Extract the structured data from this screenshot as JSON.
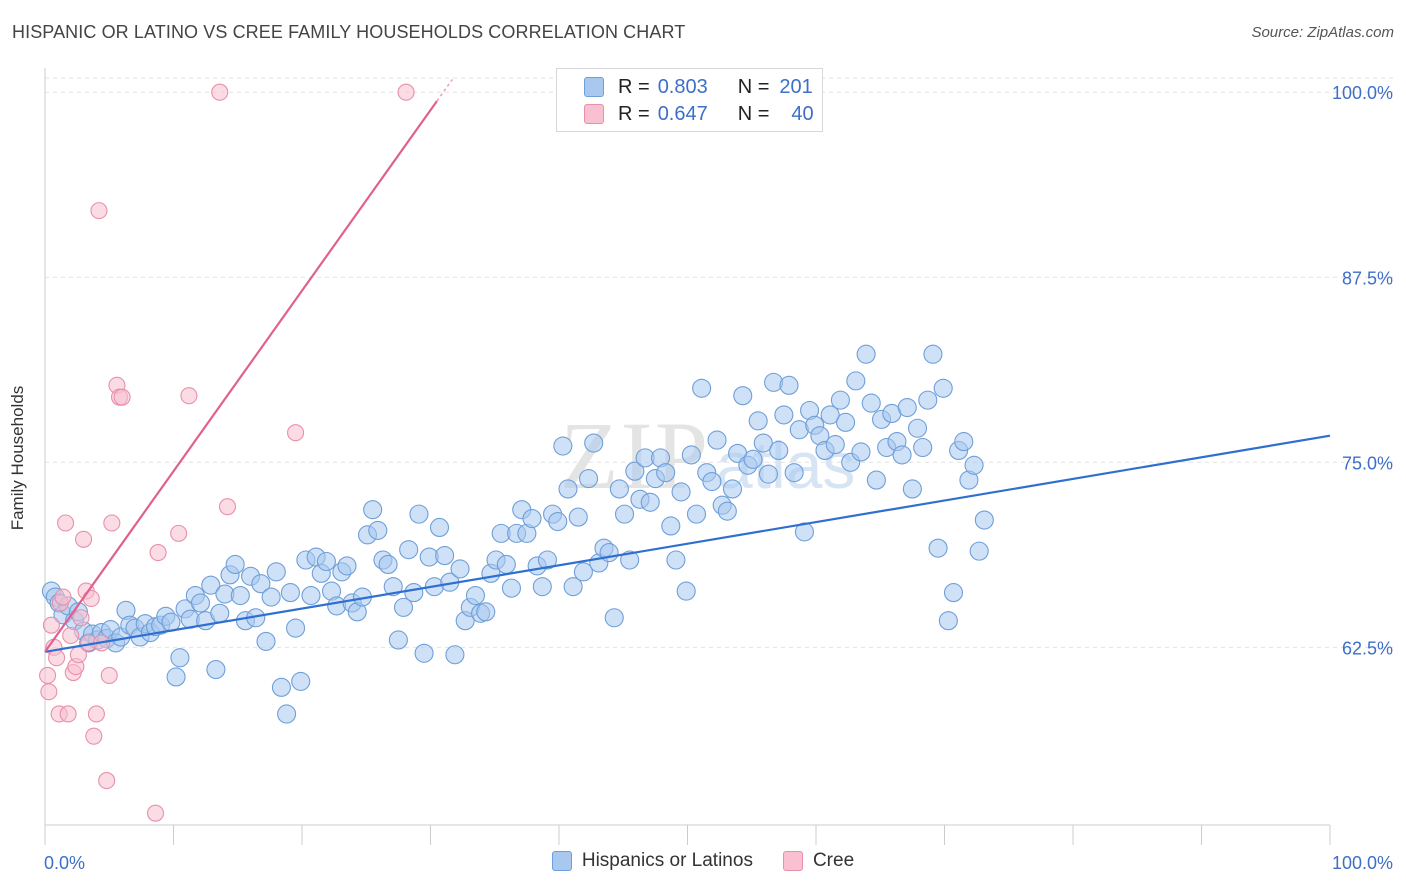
{
  "title": "HISPANIC OR LATINO VS CREE FAMILY HOUSEHOLDS CORRELATION CHART",
  "source": "Source: ZipAtlas.com",
  "watermark": {
    "zip": "ZIP",
    "atlas": "atlas"
  },
  "stats_legend": [
    {
      "r_label": "R =",
      "r_value": "0.803",
      "n_label": "N =",
      "n_value": "201",
      "color": "#a8c8f0",
      "border": "#6f9fd8"
    },
    {
      "r_label": "R =",
      "r_value": "0.647",
      "n_label": "N =",
      "n_value": "40",
      "color": "#f8c0d0",
      "border": "#e890aa"
    }
  ],
  "bottom_legend": [
    {
      "label": "Hispanics or Latinos",
      "color": "#a8c8f0",
      "border": "#6f9fd8"
    },
    {
      "label": "Cree",
      "color": "#f8c0d0",
      "border": "#e890aa"
    }
  ],
  "chart_data": {
    "type": "scatter",
    "title": "HISPANIC OR LATINO VS CREE FAMILY HOUSEHOLDS CORRELATION CHART",
    "xlabel": "",
    "ylabel": "Family Households",
    "xlim": [
      0,
      100
    ],
    "ylim": [
      50.5,
      101.5
    ],
    "x_tick_labels": [
      "0.0%",
      "100.0%"
    ],
    "y_ticks": [
      62.5,
      75.0,
      87.5,
      100.0
    ],
    "y_tick_labels": [
      "62.5%",
      "75.0%",
      "87.5%",
      "100.0%"
    ],
    "grid": true,
    "series": [
      {
        "name": "Hispanics or Latinos",
        "color": "#a8c8f0",
        "stroke": "#6f9fd8",
        "trend": {
          "x": [
            0,
            100
          ],
          "y": [
            62.2,
            76.8
          ],
          "color": "#2f6fd0"
        },
        "points": [
          [
            0.5,
            66.3
          ],
          [
            0.8,
            65.9
          ],
          [
            1.1,
            65.5
          ],
          [
            1.4,
            64.7
          ],
          [
            1.8,
            65.3
          ],
          [
            2.3,
            64.3
          ],
          [
            2.6,
            64.9
          ],
          [
            3.0,
            63.6
          ],
          [
            3.4,
            62.8
          ],
          [
            3.7,
            63.4
          ],
          [
            4.1,
            63.0
          ],
          [
            4.4,
            63.5
          ],
          [
            4.8,
            63.1
          ],
          [
            5.1,
            63.7
          ],
          [
            5.5,
            62.8
          ],
          [
            5.9,
            63.2
          ],
          [
            6.3,
            65.0
          ],
          [
            6.6,
            64.0
          ],
          [
            7.0,
            63.8
          ],
          [
            7.4,
            63.2
          ],
          [
            7.8,
            64.1
          ],
          [
            8.2,
            63.5
          ],
          [
            8.6,
            63.9
          ],
          [
            9.0,
            64.0
          ],
          [
            9.4,
            64.6
          ],
          [
            9.8,
            64.2
          ],
          [
            10.2,
            60.5
          ],
          [
            10.5,
            61.8
          ],
          [
            10.9,
            65.1
          ],
          [
            11.3,
            64.4
          ],
          [
            11.7,
            66.0
          ],
          [
            12.1,
            65.5
          ],
          [
            12.5,
            64.3
          ],
          [
            12.9,
            66.7
          ],
          [
            13.3,
            61.0
          ],
          [
            13.6,
            64.8
          ],
          [
            14.0,
            66.1
          ],
          [
            14.4,
            67.4
          ],
          [
            14.8,
            68.1
          ],
          [
            15.2,
            66.0
          ],
          [
            15.6,
            64.3
          ],
          [
            16.0,
            67.3
          ],
          [
            16.4,
            64.5
          ],
          [
            16.8,
            66.8
          ],
          [
            17.2,
            62.9
          ],
          [
            17.6,
            65.9
          ],
          [
            18.0,
            67.6
          ],
          [
            18.4,
            59.8
          ],
          [
            18.8,
            58.0
          ],
          [
            19.1,
            66.2
          ],
          [
            19.5,
            63.8
          ],
          [
            19.9,
            60.2
          ],
          [
            20.3,
            68.4
          ],
          [
            20.7,
            66.0
          ],
          [
            21.1,
            68.6
          ],
          [
            21.5,
            67.5
          ],
          [
            21.9,
            68.3
          ],
          [
            22.3,
            66.3
          ],
          [
            22.7,
            65.3
          ],
          [
            23.1,
            67.6
          ],
          [
            23.5,
            68.0
          ],
          [
            23.9,
            65.5
          ],
          [
            24.3,
            64.9
          ],
          [
            24.7,
            65.9
          ],
          [
            25.1,
            70.1
          ],
          [
            25.5,
            71.8
          ],
          [
            25.9,
            70.4
          ],
          [
            26.3,
            68.4
          ],
          [
            26.7,
            68.1
          ],
          [
            27.1,
            66.6
          ],
          [
            27.5,
            63.0
          ],
          [
            27.9,
            65.2
          ],
          [
            28.3,
            69.1
          ],
          [
            28.7,
            66.2
          ],
          [
            29.1,
            71.5
          ],
          [
            29.5,
            62.1
          ],
          [
            29.9,
            68.6
          ],
          [
            30.3,
            66.6
          ],
          [
            30.7,
            70.6
          ],
          [
            31.1,
            68.7
          ],
          [
            31.5,
            66.9
          ],
          [
            31.9,
            62.0
          ],
          [
            32.3,
            67.8
          ],
          [
            32.7,
            64.3
          ],
          [
            33.1,
            65.2
          ],
          [
            33.5,
            66.0
          ],
          [
            33.9,
            64.8
          ],
          [
            34.3,
            64.9
          ],
          [
            34.7,
            67.5
          ],
          [
            35.1,
            68.4
          ],
          [
            35.5,
            70.2
          ],
          [
            35.9,
            68.1
          ],
          [
            36.3,
            66.5
          ],
          [
            36.7,
            70.2
          ],
          [
            37.1,
            71.8
          ],
          [
            37.5,
            70.2
          ],
          [
            37.9,
            71.2
          ],
          [
            38.3,
            68.0
          ],
          [
            38.7,
            66.6
          ],
          [
            39.1,
            68.4
          ],
          [
            39.5,
            71.5
          ],
          [
            39.9,
            71.0
          ],
          [
            40.3,
            76.1
          ],
          [
            40.7,
            73.2
          ],
          [
            41.1,
            66.6
          ],
          [
            41.5,
            71.3
          ],
          [
            41.9,
            67.6
          ],
          [
            42.3,
            73.9
          ],
          [
            42.7,
            76.3
          ],
          [
            43.1,
            68.2
          ],
          [
            43.5,
            69.2
          ],
          [
            43.9,
            68.9
          ],
          [
            44.3,
            64.5
          ],
          [
            44.7,
            73.2
          ],
          [
            45.1,
            71.5
          ],
          [
            45.5,
            68.4
          ],
          [
            45.9,
            74.4
          ],
          [
            46.3,
            72.5
          ],
          [
            46.7,
            75.3
          ],
          [
            47.1,
            72.3
          ],
          [
            47.5,
            73.9
          ],
          [
            47.9,
            75.3
          ],
          [
            48.3,
            74.3
          ],
          [
            48.7,
            70.7
          ],
          [
            49.1,
            68.4
          ],
          [
            49.5,
            73.0
          ],
          [
            49.9,
            66.3
          ],
          [
            50.3,
            75.5
          ],
          [
            50.7,
            71.5
          ],
          [
            51.1,
            80.0
          ],
          [
            51.5,
            74.3
          ],
          [
            51.9,
            73.7
          ],
          [
            52.3,
            76.5
          ],
          [
            52.7,
            72.1
          ],
          [
            53.1,
            71.7
          ],
          [
            53.5,
            73.2
          ],
          [
            53.9,
            75.6
          ],
          [
            54.3,
            79.5
          ],
          [
            54.7,
            74.8
          ],
          [
            55.1,
            75.2
          ],
          [
            55.5,
            77.8
          ],
          [
            55.9,
            76.3
          ],
          [
            56.3,
            74.2
          ],
          [
            56.7,
            80.4
          ],
          [
            57.1,
            75.8
          ],
          [
            57.5,
            78.2
          ],
          [
            57.9,
            80.2
          ],
          [
            58.3,
            74.3
          ],
          [
            58.7,
            77.2
          ],
          [
            59.1,
            70.3
          ],
          [
            59.5,
            78.5
          ],
          [
            59.9,
            77.5
          ],
          [
            60.3,
            76.8
          ],
          [
            60.7,
            75.8
          ],
          [
            61.1,
            78.2
          ],
          [
            61.5,
            76.2
          ],
          [
            61.9,
            79.2
          ],
          [
            62.3,
            77.7
          ],
          [
            62.7,
            75.0
          ],
          [
            63.1,
            80.5
          ],
          [
            63.5,
            75.7
          ],
          [
            63.9,
            82.3
          ],
          [
            64.3,
            79.0
          ],
          [
            64.7,
            73.8
          ],
          [
            65.1,
            77.9
          ],
          [
            65.5,
            76.0
          ],
          [
            65.9,
            78.3
          ],
          [
            66.3,
            76.4
          ],
          [
            66.7,
            75.5
          ],
          [
            67.1,
            78.7
          ],
          [
            67.5,
            73.2
          ],
          [
            67.9,
            77.3
          ],
          [
            68.3,
            76.0
          ],
          [
            68.7,
            79.2
          ],
          [
            69.1,
            82.3
          ],
          [
            69.5,
            69.2
          ],
          [
            69.9,
            80.0
          ],
          [
            70.3,
            64.3
          ],
          [
            70.7,
            66.2
          ],
          [
            71.1,
            75.8
          ],
          [
            71.5,
            76.4
          ],
          [
            71.9,
            73.8
          ],
          [
            72.3,
            74.8
          ],
          [
            72.7,
            69.0
          ],
          [
            73.1,
            71.1
          ]
        ]
      },
      {
        "name": "Cree",
        "color": "#f8c0d0",
        "stroke": "#e890aa",
        "trend": {
          "x": [
            0,
            30.5
          ],
          "y": [
            62.2,
            99.4
          ],
          "color": "#e06090"
        },
        "points": [
          [
            0.2,
            60.6
          ],
          [
            0.3,
            59.5
          ],
          [
            0.5,
            64.0
          ],
          [
            0.7,
            62.5
          ],
          [
            0.9,
            61.8
          ],
          [
            1.1,
            58.0
          ],
          [
            1.2,
            65.5
          ],
          [
            1.4,
            65.9
          ],
          [
            1.6,
            70.9
          ],
          [
            1.8,
            58.0
          ],
          [
            2.0,
            63.3
          ],
          [
            2.2,
            60.8
          ],
          [
            2.4,
            61.2
          ],
          [
            2.6,
            62.0
          ],
          [
            2.8,
            64.5
          ],
          [
            3.0,
            69.8
          ],
          [
            3.2,
            66.3
          ],
          [
            3.4,
            62.8
          ],
          [
            3.6,
            65.8
          ],
          [
            3.8,
            56.5
          ],
          [
            4.0,
            58.0
          ],
          [
            4.2,
            92.0
          ],
          [
            4.4,
            62.8
          ],
          [
            4.8,
            53.5
          ],
          [
            5.0,
            60.6
          ],
          [
            5.2,
            70.9
          ],
          [
            5.6,
            80.2
          ],
          [
            5.8,
            79.4
          ],
          [
            6.0,
            79.4
          ],
          [
            8.6,
            51.3
          ],
          [
            8.8,
            68.9
          ],
          [
            10.4,
            70.2
          ],
          [
            11.2,
            79.5
          ],
          [
            14.2,
            72.0
          ],
          [
            13.6,
            100.0
          ],
          [
            19.5,
            77.0
          ],
          [
            28.1,
            100.0
          ]
        ]
      }
    ]
  }
}
